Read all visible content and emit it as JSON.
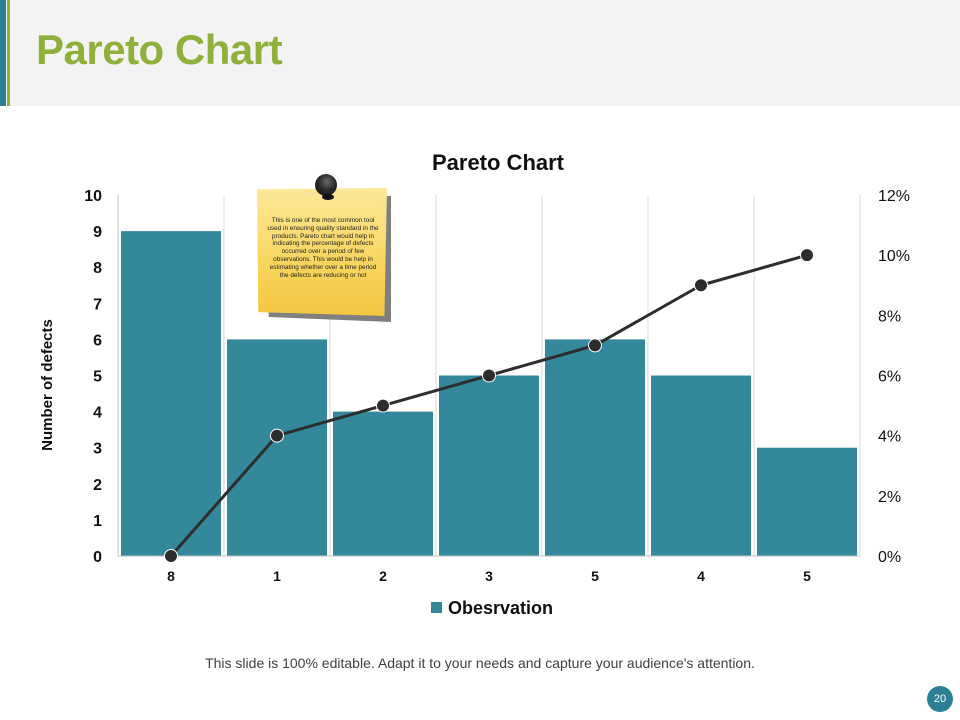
{
  "slide": {
    "title": "Pareto Chart",
    "footer": "This slide is 100% editable. Adapt it to your needs and capture your audience's attention.",
    "page_number": "20"
  },
  "note": {
    "text": "This is one of the most common tool used in ensuring quality standard in the products. Pareto chart would help in indicating the percentage of defects occurred over a period of few observations. This would be help in estimating whether over a time period the defects are reducing or not",
    "pin_icon": "push-pin-icon"
  },
  "colors": {
    "title_green": "#8fb03a",
    "bar_teal": "#34889c",
    "line_dark": "#2d2d2d",
    "accent_blue": "#2d7f96"
  },
  "chart_data": {
    "type": "bar",
    "title": "Pareto Chart",
    "categories": [
      "8",
      "1",
      "2",
      "3",
      "5",
      "4",
      "5"
    ],
    "series": [
      {
        "name": "Obesrvation",
        "type": "bar",
        "axis": "left",
        "values": [
          9,
          6,
          4,
          5,
          6,
          5,
          3
        ]
      },
      {
        "type": "line",
        "axis": "right",
        "values": [
          0,
          4,
          5,
          6,
          7,
          9,
          10
        ]
      }
    ],
    "ylabel": "Number of defects",
    "ylim": [
      0,
      10
    ],
    "yticks": [
      "0",
      "1",
      "2",
      "3",
      "4",
      "5",
      "6",
      "7",
      "8",
      "9",
      "10"
    ],
    "y2lim": [
      0,
      12
    ],
    "y2ticks": [
      "0%",
      "2%",
      "4%",
      "6%",
      "8%",
      "10%",
      "12%"
    ],
    "grid": "vertical",
    "legend": "bottom"
  }
}
